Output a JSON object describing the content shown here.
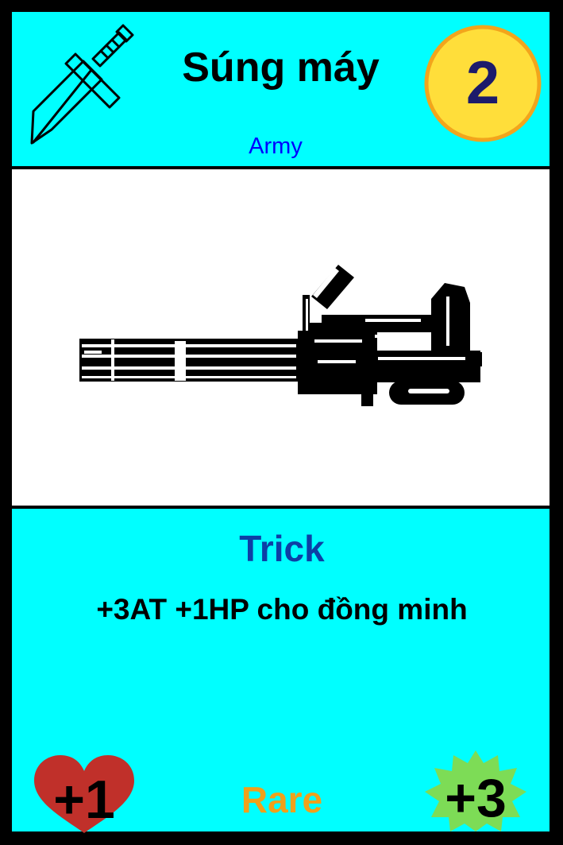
{
  "card": {
    "name": "Súng máy",
    "subtype": "Army",
    "cost": "2",
    "kind": "Trick",
    "effect": "+3AT +1HP cho đồng minh",
    "rarity": "Rare",
    "health": "+1",
    "attack": "+3"
  },
  "icons": {
    "type_icon": "sword-icon",
    "art": "minigun-illustration",
    "health_icon": "heart-icon",
    "attack_icon": "burst-star-icon"
  },
  "colors": {
    "frame": "#00ffff",
    "art_bg": "#ffffff",
    "cost_fill": "#ffde3a",
    "cost_ring": "#f2a51c",
    "cost_text": "#1d1b6b",
    "subtype_text": "#0000ff",
    "kind_text": "#0d3fa5",
    "rarity_text": "#f0a01a",
    "heart": "#c0302a",
    "burst": "#7ddc56"
  }
}
